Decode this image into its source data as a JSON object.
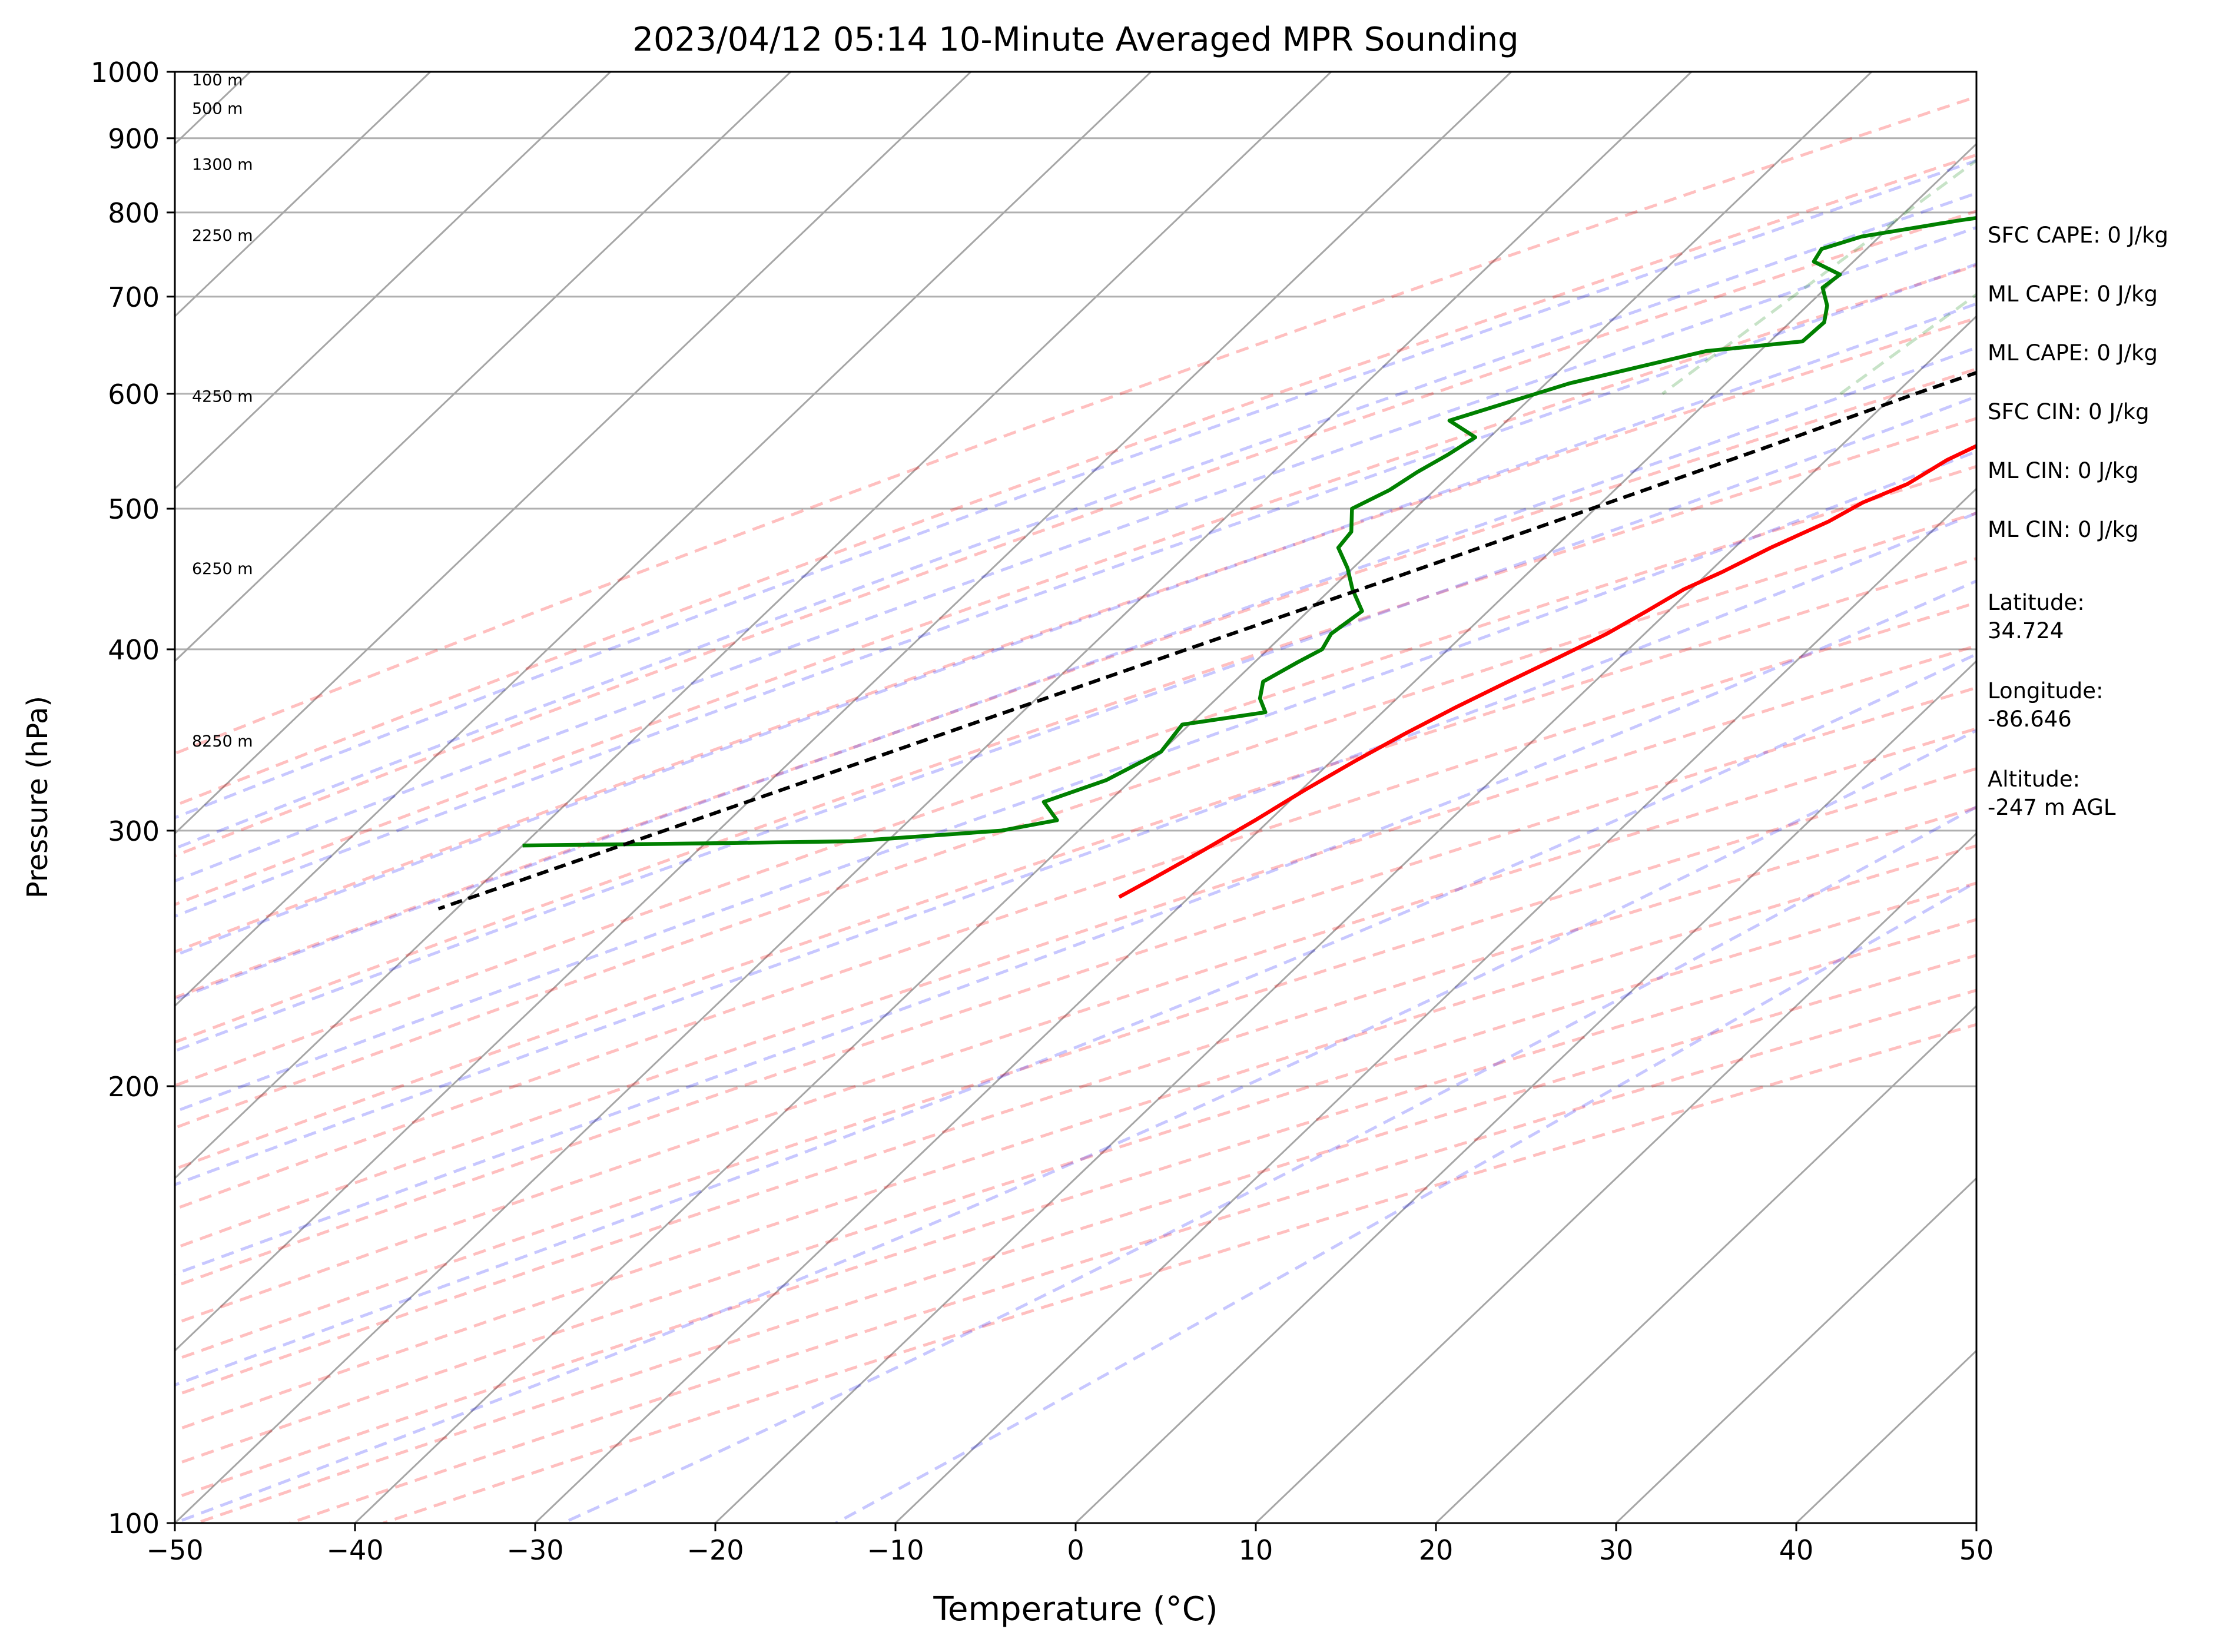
{
  "chart_data": {
    "type": "line",
    "subtype": "skew-t log-p",
    "title": "2023/04/12 05:14 10-Minute Averaged MPR Sounding",
    "xlabel": "Temperature (°C)",
    "ylabel": "Pressure (hPa)",
    "xlim": [
      -50,
      50
    ],
    "ylim": [
      1000,
      100
    ],
    "y_scale": "log",
    "x_ticks": [
      "−50",
      "−40",
      "−30",
      "−20",
      "−10",
      "0",
      "10",
      "20",
      "30",
      "40",
      "50"
    ],
    "y_ticks": [
      "1000",
      "900",
      "800",
      "700",
      "600",
      "500",
      "400",
      "300",
      "200",
      "100"
    ],
    "grid": true,
    "series": [
      {
        "role": "temperature",
        "color": "#ff0000",
        "points": [
          [
            1000,
            12.7
          ],
          [
            998,
            16.0
          ],
          [
            992,
            18.3
          ],
          [
            985,
            19.1
          ],
          [
            975,
            19.1
          ],
          [
            960,
            18.4
          ],
          [
            940,
            17.0
          ],
          [
            920,
            14.9
          ],
          [
            900,
            12.1
          ],
          [
            880,
            9.6
          ],
          [
            860,
            7.6
          ],
          [
            845,
            6.7
          ],
          [
            830,
            5.4
          ],
          [
            815,
            3.9
          ],
          [
            805,
            3.1
          ],
          [
            795,
            2.9
          ],
          [
            775,
            1.9
          ],
          [
            755,
            0.5
          ],
          [
            735,
            -1.0
          ],
          [
            715,
            -2.2
          ],
          [
            700,
            -2.6
          ],
          [
            680,
            -3.8
          ],
          [
            665,
            -4.4
          ],
          [
            650,
            -5.6
          ],
          [
            630,
            -7.2
          ],
          [
            610,
            -8.5
          ],
          [
            590,
            -9.5
          ],
          [
            570,
            -11.0
          ],
          [
            555,
            -12.3
          ],
          [
            540,
            -13.3
          ],
          [
            520,
            -14.1
          ],
          [
            505,
            -15.5
          ],
          [
            490,
            -16.3
          ],
          [
            470,
            -18.0
          ],
          [
            452,
            -19.3
          ],
          [
            440,
            -20.4
          ],
          [
            425,
            -21.2
          ],
          [
            410,
            -22.1
          ],
          [
            395,
            -23.4
          ],
          [
            380,
            -24.8
          ],
          [
            365,
            -26.2
          ],
          [
            350,
            -27.5
          ],
          [
            335,
            -28.7
          ],
          [
            320,
            -29.8
          ],
          [
            305,
            -30.8
          ],
          [
            290,
            -32.0
          ],
          [
            278,
            -33.1
          ],
          [
            270,
            -33.9
          ]
        ]
      },
      {
        "role": "dewpoint",
        "color": "#008000",
        "points": [
          [
            1000,
            4.6
          ],
          [
            996,
            2.4
          ],
          [
            990,
            -0.5
          ],
          [
            980,
            -3.3
          ],
          [
            965,
            -5.1
          ],
          [
            960,
            -5.5
          ],
          [
            950,
            -4.0
          ],
          [
            940,
            -4.1
          ],
          [
            930,
            -4.8
          ],
          [
            920,
            -4.0
          ],
          [
            915,
            -4.2
          ],
          [
            905,
            -5.6
          ],
          [
            890,
            -8.0
          ],
          [
            870,
            -12.5
          ],
          [
            850,
            -16.8
          ],
          [
            840,
            -19.0
          ],
          [
            830,
            -21.0
          ],
          [
            820,
            -21.5
          ],
          [
            810,
            -21.2
          ],
          [
            790,
            -26.5
          ],
          [
            770,
            -31.0
          ],
          [
            755,
            -32.5
          ],
          [
            740,
            -32.2
          ],
          [
            725,
            -30.0
          ],
          [
            710,
            -30.2
          ],
          [
            690,
            -28.9
          ],
          [
            672,
            -28.1
          ],
          [
            652,
            -28.2
          ],
          [
            642,
            -33.0
          ],
          [
            625,
            -36.0
          ],
          [
            610,
            -38.7
          ],
          [
            595,
            -40.6
          ],
          [
            575,
            -43.2
          ],
          [
            560,
            -40.8
          ],
          [
            545,
            -41.3
          ],
          [
            530,
            -42.0
          ],
          [
            515,
            -42.5
          ],
          [
            500,
            -43.5
          ],
          [
            482,
            -42.2
          ],
          [
            470,
            -42.0
          ],
          [
            455,
            -40.3
          ],
          [
            440,
            -38.8
          ],
          [
            425,
            -37.0
          ],
          [
            410,
            -37.4
          ],
          [
            400,
            -37.0
          ],
          [
            392,
            -37.6
          ],
          [
            380,
            -38.4
          ],
          [
            370,
            -37.6
          ],
          [
            362,
            -36.5
          ],
          [
            355,
            -40.4
          ],
          [
            340,
            -40.0
          ],
          [
            325,
            -41.4
          ],
          [
            314,
            -43.6
          ],
          [
            305,
            -41.8
          ],
          [
            300,
            -44.3
          ],
          [
            295,
            -52.0
          ],
          [
            294,
            -60.0
          ],
          [
            293,
            -70.0
          ]
        ]
      },
      {
        "role": "parcel",
        "color": "#000000",
        "style": "dashed",
        "points": [
          [
            1000,
            12.7
          ],
          [
            960,
            10.1
          ],
          [
            920,
            7.1
          ],
          [
            880,
            4.4
          ],
          [
            860,
            3.0
          ],
          [
            820,
            0.2
          ],
          [
            780,
            -2.8
          ],
          [
            740,
            -5.9
          ],
          [
            700,
            -9.2
          ],
          [
            650,
            -13.7
          ],
          [
            600,
            -18.9
          ],
          [
            550,
            -24.2
          ],
          [
            500,
            -30.2
          ],
          [
            450,
            -36.9
          ],
          [
            400,
            -44.5
          ],
          [
            350,
            -53.1
          ],
          [
            300,
            -63.0
          ],
          [
            265,
            -71.0
          ]
        ]
      }
    ],
    "height_labels": [
      {
        "text": "100 m",
        "p": 988
      },
      {
        "text": "500 m",
        "p": 944
      },
      {
        "text": "1300 m",
        "p": 864
      },
      {
        "text": "2250 m",
        "p": 772
      },
      {
        "text": "4250 m",
        "p": 598
      },
      {
        "text": "6250 m",
        "p": 455
      },
      {
        "text": "8250 m",
        "p": 346
      }
    ],
    "colors": {
      "isotherms": "#a6a6a6",
      "dry_adiabats": "#ff0000",
      "moist_adiabats": "#0000ff",
      "mixing_ratio": "#008000"
    }
  },
  "info_panel": [
    {
      "lines": [
        "SFC CAPE: 0 J/kg"
      ]
    },
    {
      "lines": [
        "ML CAPE: 0 J/kg"
      ]
    },
    {
      "lines": [
        "ML CAPE: 0 J/kg"
      ]
    },
    {
      "lines": [
        "SFC CIN: 0 J/kg"
      ]
    },
    {
      "lines": [
        "ML CIN: 0 J/kg"
      ]
    },
    {
      "lines": [
        "ML CIN: 0 J/kg"
      ]
    },
    {
      "lines": [
        "Latitude:",
        "34.724"
      ]
    },
    {
      "lines": [
        "Longitude:",
        "-86.646"
      ]
    },
    {
      "lines": [
        "Altitude:",
        "-247 m AGL"
      ]
    }
  ]
}
